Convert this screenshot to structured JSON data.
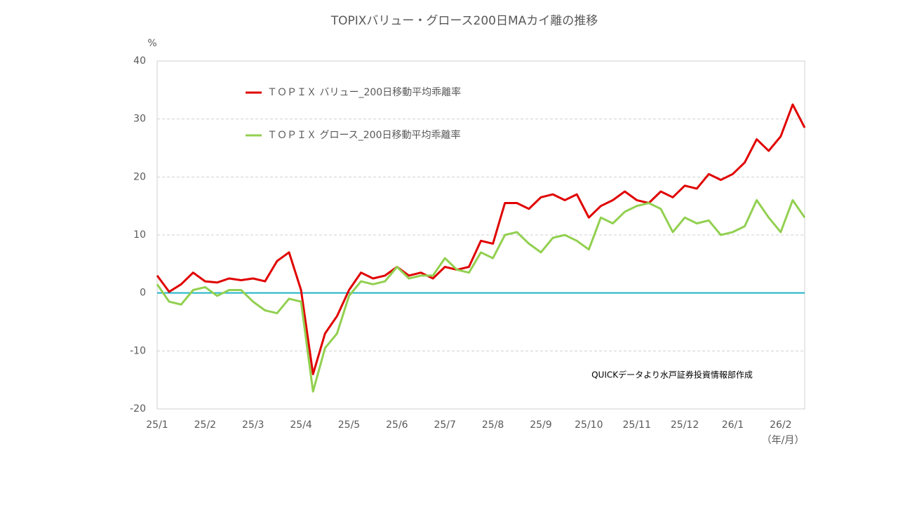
{
  "chart_data": {
    "type": "line",
    "title": "TOPIXバリュー・グロース200日MAカイ離の推移",
    "y_unit": "%",
    "x_unit": "（年/月）",
    "annotation": "QUICKデータより水戸証券投資情報部作成",
    "categories": [
      "25/1",
      null,
      null,
      null,
      "25/2",
      null,
      null,
      null,
      "25/3",
      null,
      null,
      null,
      "25/4",
      null,
      null,
      null,
      "25/5",
      null,
      null,
      null,
      "25/6",
      null,
      null,
      null,
      "25/7",
      null,
      null,
      null,
      "25/8",
      null,
      null,
      null,
      "25/9",
      null,
      null,
      null,
      "25/10",
      null,
      null,
      null,
      "25/11",
      null,
      null,
      null,
      "25/12",
      null,
      null,
      null,
      "26/1",
      null,
      null,
      null,
      "26/2",
      null,
      null
    ],
    "series": [
      {
        "name": "ＴＯＰＩＸ バリュー_200日移動平均乖離率",
        "color": "#e00000",
        "values": [
          3.0,
          0.2,
          1.5,
          3.5,
          2.0,
          1.8,
          2.5,
          2.2,
          2.5,
          2.0,
          5.5,
          7.0,
          0.5,
          -14,
          -7,
          -4,
          0.5,
          3.5,
          2.5,
          3.0,
          4.5,
          3.0,
          3.5,
          2.5,
          4.5,
          4.0,
          4.5,
          9.0,
          8.5,
          15.5,
          15.5,
          14.5,
          16.5,
          17.0,
          16.0,
          17.0,
          13.0,
          15.0,
          16.0,
          17.5,
          16.0,
          15.5,
          17.5,
          16.5,
          18.5,
          18.0,
          20.5,
          19.5,
          20.5,
          22.5,
          26.5,
          24.5,
          27.0,
          32.5,
          28.5
        ]
      },
      {
        "name": "ＴＯＰＩＸ グロース_200日移動平均乖離率",
        "color": "#92d050",
        "values": [
          1.5,
          -1.5,
          -2.0,
          0.5,
          1.0,
          -0.5,
          0.5,
          0.5,
          -1.5,
          -3.0,
          -3.5,
          -1.0,
          -1.5,
          -17,
          -9.5,
          -7.0,
          -0.5,
          2.0,
          1.5,
          2.0,
          4.5,
          2.5,
          3.0,
          3.0,
          6.0,
          4.0,
          3.5,
          7.0,
          6.0,
          10.0,
          10.5,
          8.5,
          7.0,
          9.5,
          10.0,
          9.0,
          7.5,
          13.0,
          12.0,
          14.0,
          15.0,
          15.5,
          14.5,
          10.5,
          13.0,
          12.0,
          12.5,
          10.0,
          10.5,
          11.5,
          16.0,
          13.0,
          10.5,
          16.0,
          13.0
        ]
      }
    ],
    "ylim": [
      -20,
      40
    ],
    "yticks": [
      -20,
      -10,
      0,
      10,
      20,
      30,
      40
    ],
    "grid": true,
    "zero_line_color": "#1fb3c6"
  }
}
